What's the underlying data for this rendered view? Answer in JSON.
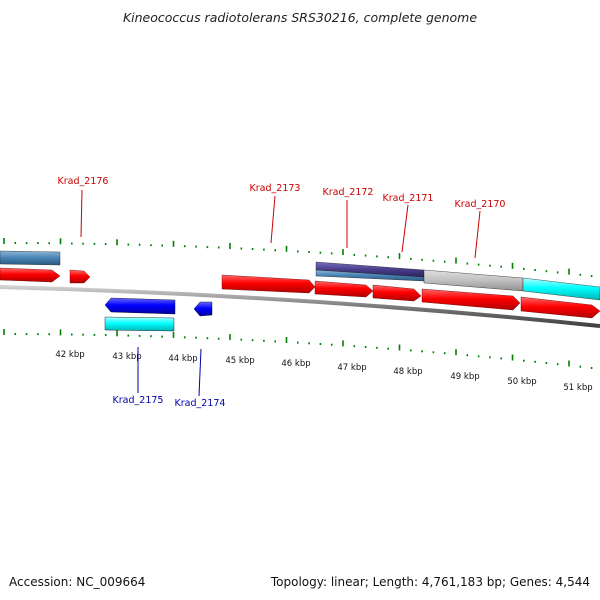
{
  "title": "Kineococcus radiotolerans SRS30216, complete genome",
  "accession": "Accession: NC_009664",
  "summary": "Topology: linear; Length: 4,761,183 bp; Genes: 4,544",
  "kbp_labels": [
    "42 kbp",
    "43 kbp",
    "44 kbp",
    "45 kbp",
    "46 kbp",
    "47 kbp",
    "48 kbp",
    "49 kbp",
    "50 kbp",
    "51 kbp"
  ],
  "genes_top": [
    "Krad_2176",
    "Krad_2173",
    "Krad_2172",
    "Krad_2171",
    "Krad_2170"
  ],
  "genes_bottom": [
    "Krad_2175",
    "Krad_2174"
  ],
  "colors": {
    "forward_gene": "#ff0000",
    "reverse_gene": "#0000ff",
    "cyan_feature": "#00ffff",
    "steel_feature": "#4682b4",
    "purple_feature": "#483d8b",
    "grey_feature": "#c0c0c0",
    "tick": "#008000",
    "top_label": "#cc0000",
    "bottom_label": "#0000aa"
  }
}
